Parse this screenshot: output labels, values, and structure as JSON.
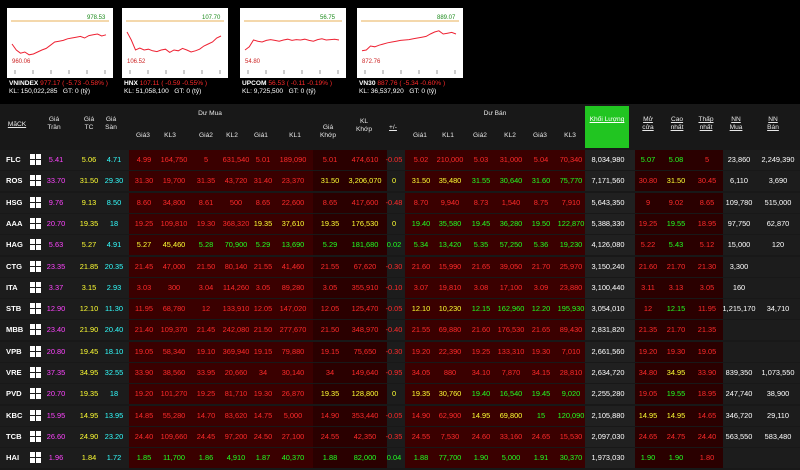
{
  "mini_charts": [
    {
      "name": "VNINDEX",
      "hi": "978.53",
      "lo": "960.06",
      "change": "977.17 ( -5.73 -0.58% )",
      "kl": "KL: 150,022,285",
      "gt": "GT: 0 (tỷ)",
      "points": [
        0.55,
        0.7,
        0.78,
        0.75,
        0.82,
        0.8,
        0.75,
        0.7,
        0.66,
        0.58,
        0.5,
        0.48,
        0.46,
        0.42,
        0.4,
        0.38,
        0.36,
        0.4,
        0.34,
        0.32,
        0.3,
        0.35,
        0.32
      ]
    },
    {
      "name": "HNX",
      "hi": "107.70",
      "lo": "106.52",
      "change": "107.11 ( -0.59 -0.55% )",
      "kl": "KL: 51,058,100",
      "gt": "GT: 0 (tỷ)",
      "points": [
        0.25,
        0.45,
        0.7,
        0.65,
        0.7,
        0.68,
        0.72,
        0.74,
        0.7,
        0.68,
        0.76,
        0.7,
        0.72,
        0.66,
        0.7,
        0.75,
        0.72,
        0.68,
        0.6,
        0.55,
        0.5,
        0.4,
        0.35
      ]
    },
    {
      "name": "UPCOM",
      "hi": "56.75",
      "lo": "54.80",
      "change": "56.53 ( -0.11 -0.19% )",
      "kl": "KL: 9,725,500",
      "gt": "GT: 0 (tỷ)",
      "points": [
        0.7,
        0.62,
        0.45,
        0.48,
        0.5,
        0.46,
        0.44,
        0.46,
        0.48,
        0.45,
        0.43,
        0.46,
        0.44,
        0.45,
        0.43,
        0.46,
        0.48,
        0.44,
        0.42,
        0.45,
        0.44,
        0.43,
        0.45
      ]
    },
    {
      "name": "VN30",
      "hi": "889.07",
      "lo": "872.76",
      "change": "887.76 ( -5.34 -0.60% )",
      "kl": "KL: 36,537,920",
      "gt": "GT: 0 (tỷ)",
      "points": [
        0.72,
        0.7,
        0.6,
        0.62,
        0.58,
        0.55,
        0.52,
        0.5,
        0.48,
        0.46,
        0.45,
        0.44,
        0.42,
        0.4,
        0.38,
        0.36,
        0.3,
        0.25,
        0.22,
        0.3,
        0.28,
        0.26,
        0.3
      ]
    }
  ],
  "headers": {
    "mack": "MãCK",
    "gia_tran": "Giá Trần",
    "gia_tc": "Giá TC",
    "gia_san": "Giá Sàn",
    "du_mua": "Dư Mua",
    "gia3": "Giá3",
    "kl3": "KL3",
    "gia2": "Giá2",
    "kl2": "KL2",
    "gia1": "Giá1",
    "kl1": "KL1",
    "gia_khop": "Giá Khớp",
    "kl_khop": "KL Khớp",
    "pm": "+/-",
    "du_ban": "Dư Bán",
    "khoi_luong": "Khối Lượng",
    "mo_cua": "Mở cửa",
    "cao_nhat": "Cao nhất",
    "thap_nhat": "Thấp nhất",
    "nn_mua": "NN Mua",
    "nn_ban": "NN Bán"
  },
  "rows": [
    {
      "sym": "FLC",
      "tran": "5.41",
      "tc": "5.06",
      "san": "4.71",
      "m3": "4.99",
      "k3": "164,750",
      "m2": "5",
      "k2": "631,540",
      "m1": "5.01",
      "k1": "189,090",
      "gk": "5.01",
      "kk": "474,610",
      "pm": "-0.05",
      "b1": "5.02",
      "bk1": "210,000",
      "b2": "5.03",
      "bk2": "31,000",
      "b3": "5.04",
      "bk3": "70,340",
      "kl": "8,034,980",
      "mo": "5.07",
      "cao": "5.08",
      "thap": "5",
      "nnm": "23,860",
      "nnb": "2,249,390",
      "c": {
        "m3": "r",
        "m2": "r",
        "m1": "r",
        "gk": "r",
        "b1": "r",
        "b2": "r",
        "b3": "r",
        "mo": "g",
        "cao": "g",
        "thap": "r"
      }
    },
    {
      "sym": "ROS",
      "tran": "33.70",
      "tc": "31.50",
      "san": "29.30",
      "m3": "31.30",
      "k3": "19,700",
      "m2": "31.35",
      "k2": "43,720",
      "m1": "31.40",
      "k1": "23,370",
      "gk": "31.50",
      "kk": "3,206,070",
      "pm": "0",
      "b1": "31.50",
      "bk1": "35,480",
      "b2": "31.55",
      "bk2": "30,640",
      "b3": "31.60",
      "bk3": "75,770",
      "kl": "7,171,560",
      "mo": "30.80",
      "cao": "31.50",
      "thap": "30.45",
      "nnm": "6,110",
      "nnb": "3,690",
      "c": {
        "m3": "r",
        "m2": "r",
        "m1": "r",
        "gk": "y",
        "b1": "y",
        "b2": "g",
        "b3": "g",
        "mo": "r",
        "cao": "y",
        "thap": "r"
      }
    },
    {
      "sym": "HSG",
      "tran": "9.76",
      "tc": "9.13",
      "san": "8.50",
      "m3": "8.60",
      "k3": "34,800",
      "m2": "8.61",
      "k2": "500",
      "m1": "8.65",
      "k1": "22,600",
      "gk": "8.65",
      "kk": "417,600",
      "pm": "-0.48",
      "b1": "8.70",
      "bk1": "9,940",
      "b2": "8.73",
      "bk2": "1,540",
      "b3": "8.75",
      "bk3": "7,910",
      "kl": "5,643,350",
      "mo": "9",
      "cao": "9.02",
      "thap": "8.65",
      "nnm": "109,780",
      "nnb": "515,000",
      "c": {
        "m3": "r",
        "m2": "r",
        "m1": "r",
        "gk": "r",
        "b1": "r",
        "b2": "r",
        "b3": "r",
        "mo": "r",
        "cao": "r",
        "thap": "r"
      }
    },
    {
      "sym": "AAA",
      "tran": "20.70",
      "tc": "19.35",
      "san": "18",
      "m3": "19.25",
      "k3": "109,810",
      "m2": "19.30",
      "k2": "368,320",
      "m1": "19.35",
      "k1": "37,610",
      "gk": "19.35",
      "kk": "176,530",
      "pm": "0",
      "b1": "19.40",
      "bk1": "35,580",
      "b2": "19.45",
      "bk2": "36,280",
      "b3": "19.50",
      "bk3": "122,870",
      "kl": "5,388,330",
      "mo": "19.25",
      "cao": "19.55",
      "thap": "18.95",
      "nnm": "97,750",
      "nnb": "62,870",
      "c": {
        "m3": "r",
        "m2": "r",
        "m1": "y",
        "gk": "y",
        "b1": "g",
        "b2": "g",
        "b3": "g",
        "mo": "r",
        "cao": "g",
        "thap": "r"
      }
    },
    {
      "sym": "HAG",
      "tran": "5.63",
      "tc": "5.27",
      "san": "4.91",
      "m3": "5.27",
      "k3": "45,460",
      "m2": "5.28",
      "k2": "70,900",
      "m1": "5.29",
      "k1": "13,690",
      "gk": "5.29",
      "kk": "181,680",
      "pm": "0.02",
      "b1": "5.34",
      "bk1": "13,420",
      "b2": "5.35",
      "bk2": "57,250",
      "b3": "5.36",
      "bk3": "19,230",
      "kl": "4,126,080",
      "mo": "5.22",
      "cao": "5.43",
      "thap": "5.12",
      "nnm": "15,000",
      "nnb": "120",
      "c": {
        "m3": "y",
        "m2": "g",
        "m1": "g",
        "gk": "g",
        "b1": "g",
        "b2": "g",
        "b3": "g",
        "mo": "r",
        "cao": "g",
        "thap": "r"
      }
    },
    {
      "sym": "CTG",
      "tran": "23.35",
      "tc": "21.85",
      "san": "20.35",
      "m3": "21.45",
      "k3": "47,000",
      "m2": "21.50",
      "k2": "80,140",
      "m1": "21.55",
      "k1": "41,460",
      "gk": "21.55",
      "kk": "67,620",
      "pm": "-0.30",
      "b1": "21.60",
      "bk1": "15,990",
      "b2": "21.65",
      "bk2": "39,050",
      "b3": "21.70",
      "bk3": "25,970",
      "kl": "3,150,240",
      "mo": "21.60",
      "cao": "21.70",
      "thap": "21.30",
      "nnm": "3,300",
      "nnb": "",
      "c": {
        "m3": "r",
        "m2": "r",
        "m1": "r",
        "gk": "r",
        "b1": "r",
        "b2": "r",
        "b3": "r",
        "mo": "r",
        "cao": "r",
        "thap": "r"
      }
    },
    {
      "sym": "ITA",
      "tran": "3.37",
      "tc": "3.15",
      "san": "2.93",
      "m3": "3.03",
      "k3": "300",
      "m2": "3.04",
      "k2": "114,260",
      "m1": "3.05",
      "k1": "89,280",
      "gk": "3.05",
      "kk": "355,910",
      "pm": "-0.10",
      "b1": "3.07",
      "bk1": "19,810",
      "b2": "3.08",
      "bk2": "17,100",
      "b3": "3.09",
      "bk3": "23,880",
      "kl": "3,100,440",
      "mo": "3.11",
      "cao": "3.13",
      "thap": "3.05",
      "nnm": "160",
      "nnb": "",
      "c": {
        "m3": "r",
        "m2": "r",
        "m1": "r",
        "gk": "r",
        "b1": "r",
        "b2": "r",
        "b3": "r",
        "mo": "r",
        "cao": "r",
        "thap": "r"
      }
    },
    {
      "sym": "STB",
      "tran": "12.90",
      "tc": "12.10",
      "san": "11.30",
      "m3": "11.95",
      "k3": "68,780",
      "m2": "12",
      "k2": "133,910",
      "m1": "12.05",
      "k1": "147,020",
      "gk": "12.05",
      "kk": "125,470",
      "pm": "-0.05",
      "b1": "12.10",
      "bk1": "10,230",
      "b2": "12.15",
      "bk2": "162,960",
      "b3": "12.20",
      "bk3": "195,930",
      "kl": "3,054,010",
      "mo": "12",
      "cao": "12.15",
      "thap": "11.95",
      "nnm": "1,215,170",
      "nnb": "34,710",
      "c": {
        "m3": "r",
        "m2": "r",
        "m1": "r",
        "gk": "r",
        "b1": "y",
        "b2": "g",
        "b3": "g",
        "mo": "r",
        "cao": "g",
        "thap": "r"
      }
    },
    {
      "sym": "MBB",
      "tran": "23.40",
      "tc": "21.90",
      "san": "20.40",
      "m3": "21.40",
      "k3": "109,370",
      "m2": "21.45",
      "k2": "242,080",
      "m1": "21.50",
      "k1": "277,670",
      "gk": "21.50",
      "kk": "348,970",
      "pm": "-0.40",
      "b1": "21.55",
      "bk1": "69,880",
      "b2": "21.60",
      "bk2": "176,530",
      "b3": "21.65",
      "bk3": "89,430",
      "kl": "2,831,820",
      "mo": "21.35",
      "cao": "21.70",
      "thap": "21.35",
      "nnm": "",
      "nnb": "",
      "c": {
        "m3": "r",
        "m2": "r",
        "m1": "r",
        "gk": "r",
        "b1": "r",
        "b2": "r",
        "b3": "r",
        "mo": "r",
        "cao": "r",
        "thap": "r"
      }
    },
    {
      "sym": "VPB",
      "tran": "20.80",
      "tc": "19.45",
      "san": "18.10",
      "m3": "19.05",
      "k3": "58,340",
      "m2": "19.10",
      "k2": "369,940",
      "m1": "19.15",
      "k1": "79,880",
      "gk": "19.15",
      "kk": "75,650",
      "pm": "-0.30",
      "b1": "19.20",
      "bk1": "22,390",
      "b2": "19.25",
      "bk2": "133,310",
      "b3": "19.30",
      "bk3": "7,010",
      "kl": "2,661,560",
      "mo": "19.20",
      "cao": "19.30",
      "thap": "19.05",
      "nnm": "",
      "nnb": "",
      "c": {
        "m3": "r",
        "m2": "r",
        "m1": "r",
        "gk": "r",
        "b1": "r",
        "b2": "r",
        "b3": "r",
        "mo": "r",
        "cao": "r",
        "thap": "r"
      }
    },
    {
      "sym": "VRE",
      "tran": "37.35",
      "tc": "34.95",
      "san": "32.55",
      "m3": "33.90",
      "k3": "38,560",
      "m2": "33.95",
      "k2": "20,660",
      "m1": "34",
      "k1": "30,140",
      "gk": "34",
      "kk": "149,640",
      "pm": "-0.95",
      "b1": "34.05",
      "bk1": "880",
      "b2": "34.10",
      "bk2": "7,870",
      "b3": "34.15",
      "bk3": "28,810",
      "kl": "2,634,720",
      "mo": "34.80",
      "cao": "34.95",
      "thap": "33.90",
      "nnm": "839,350",
      "nnb": "1,073,550",
      "c": {
        "m3": "r",
        "m2": "r",
        "m1": "r",
        "gk": "r",
        "b1": "r",
        "b2": "r",
        "b3": "r",
        "mo": "r",
        "cao": "y",
        "thap": "r"
      }
    },
    {
      "sym": "PVD",
      "tran": "20.70",
      "tc": "19.35",
      "san": "18",
      "m3": "19.20",
      "k3": "101,270",
      "m2": "19.25",
      "k2": "81,710",
      "m1": "19.30",
      "k1": "26,870",
      "gk": "19.35",
      "kk": "128,800",
      "pm": "0",
      "b1": "19.35",
      "bk1": "30,760",
      "b2": "19.40",
      "bk2": "16,540",
      "b3": "19.45",
      "bk3": "9,020",
      "kl": "2,255,280",
      "mo": "19.05",
      "cao": "19.55",
      "thap": "18.95",
      "nnm": "247,740",
      "nnb": "38,900",
      "c": {
        "m3": "r",
        "m2": "r",
        "m1": "r",
        "gk": "y",
        "b1": "y",
        "b2": "g",
        "b3": "g",
        "mo": "r",
        "cao": "g",
        "thap": "r"
      }
    },
    {
      "sym": "KBC",
      "tran": "15.95",
      "tc": "14.95",
      "san": "13.95",
      "m3": "14.85",
      "k3": "55,280",
      "m2": "14.70",
      "k2": "83,620",
      "m1": "14.75",
      "k1": "5,000",
      "gk": "14.90",
      "kk": "353,440",
      "pm": "-0.05",
      "b1": "14.90",
      "bk1": "62,900",
      "b2": "14.95",
      "bk2": "69,800",
      "b3": "15",
      "bk3": "120,090",
      "kl": "2,105,880",
      "mo": "14.95",
      "cao": "14.95",
      "thap": "14.65",
      "nnm": "346,720",
      "nnb": "29,110",
      "c": {
        "m3": "r",
        "m2": "r",
        "m1": "r",
        "gk": "r",
        "b1": "r",
        "b2": "y",
        "b3": "g",
        "mo": "y",
        "cao": "y",
        "thap": "r"
      }
    },
    {
      "sym": "TCB",
      "tran": "26.60",
      "tc": "24.90",
      "san": "23.20",
      "m3": "24.40",
      "k3": "109,660",
      "m2": "24.45",
      "k2": "97,200",
      "m1": "24.50",
      "k1": "27,100",
      "gk": "24.55",
      "kk": "42,350",
      "pm": "-0.35",
      "b1": "24.55",
      "bk1": "7,530",
      "b2": "24.60",
      "bk2": "33,160",
      "b3": "24.65",
      "bk3": "15,530",
      "kl": "2,097,030",
      "mo": "24.65",
      "cao": "24.75",
      "thap": "24.40",
      "nnm": "563,550",
      "nnb": "583,480",
      "c": {
        "m3": "r",
        "m2": "r",
        "m1": "r",
        "gk": "r",
        "b1": "r",
        "b2": "r",
        "b3": "r",
        "mo": "r",
        "cao": "r",
        "thap": "r"
      }
    },
    {
      "sym": "HAI",
      "tran": "1.96",
      "tc": "1.84",
      "san": "1.72",
      "m3": "1.85",
      "k3": "11,700",
      "m2": "1.86",
      "k2": "4,910",
      "m1": "1.87",
      "k1": "40,370",
      "gk": "1.88",
      "kk": "82,000",
      "pm": "0.04",
      "b1": "1.88",
      "bk1": "77,700",
      "b2": "1.90",
      "bk2": "5,000",
      "b3": "1.91",
      "bk3": "30,370",
      "kl": "1,973,030",
      "mo": "1.90",
      "cao": "1.90",
      "thap": "1.80",
      "nnm": "",
      "nnb": "",
      "c": {
        "m3": "g",
        "m2": "g",
        "m1": "g",
        "gk": "g",
        "b1": "g",
        "b2": "g",
        "b3": "g",
        "mo": "g",
        "cao": "g",
        "thap": "r"
      }
    }
  ]
}
